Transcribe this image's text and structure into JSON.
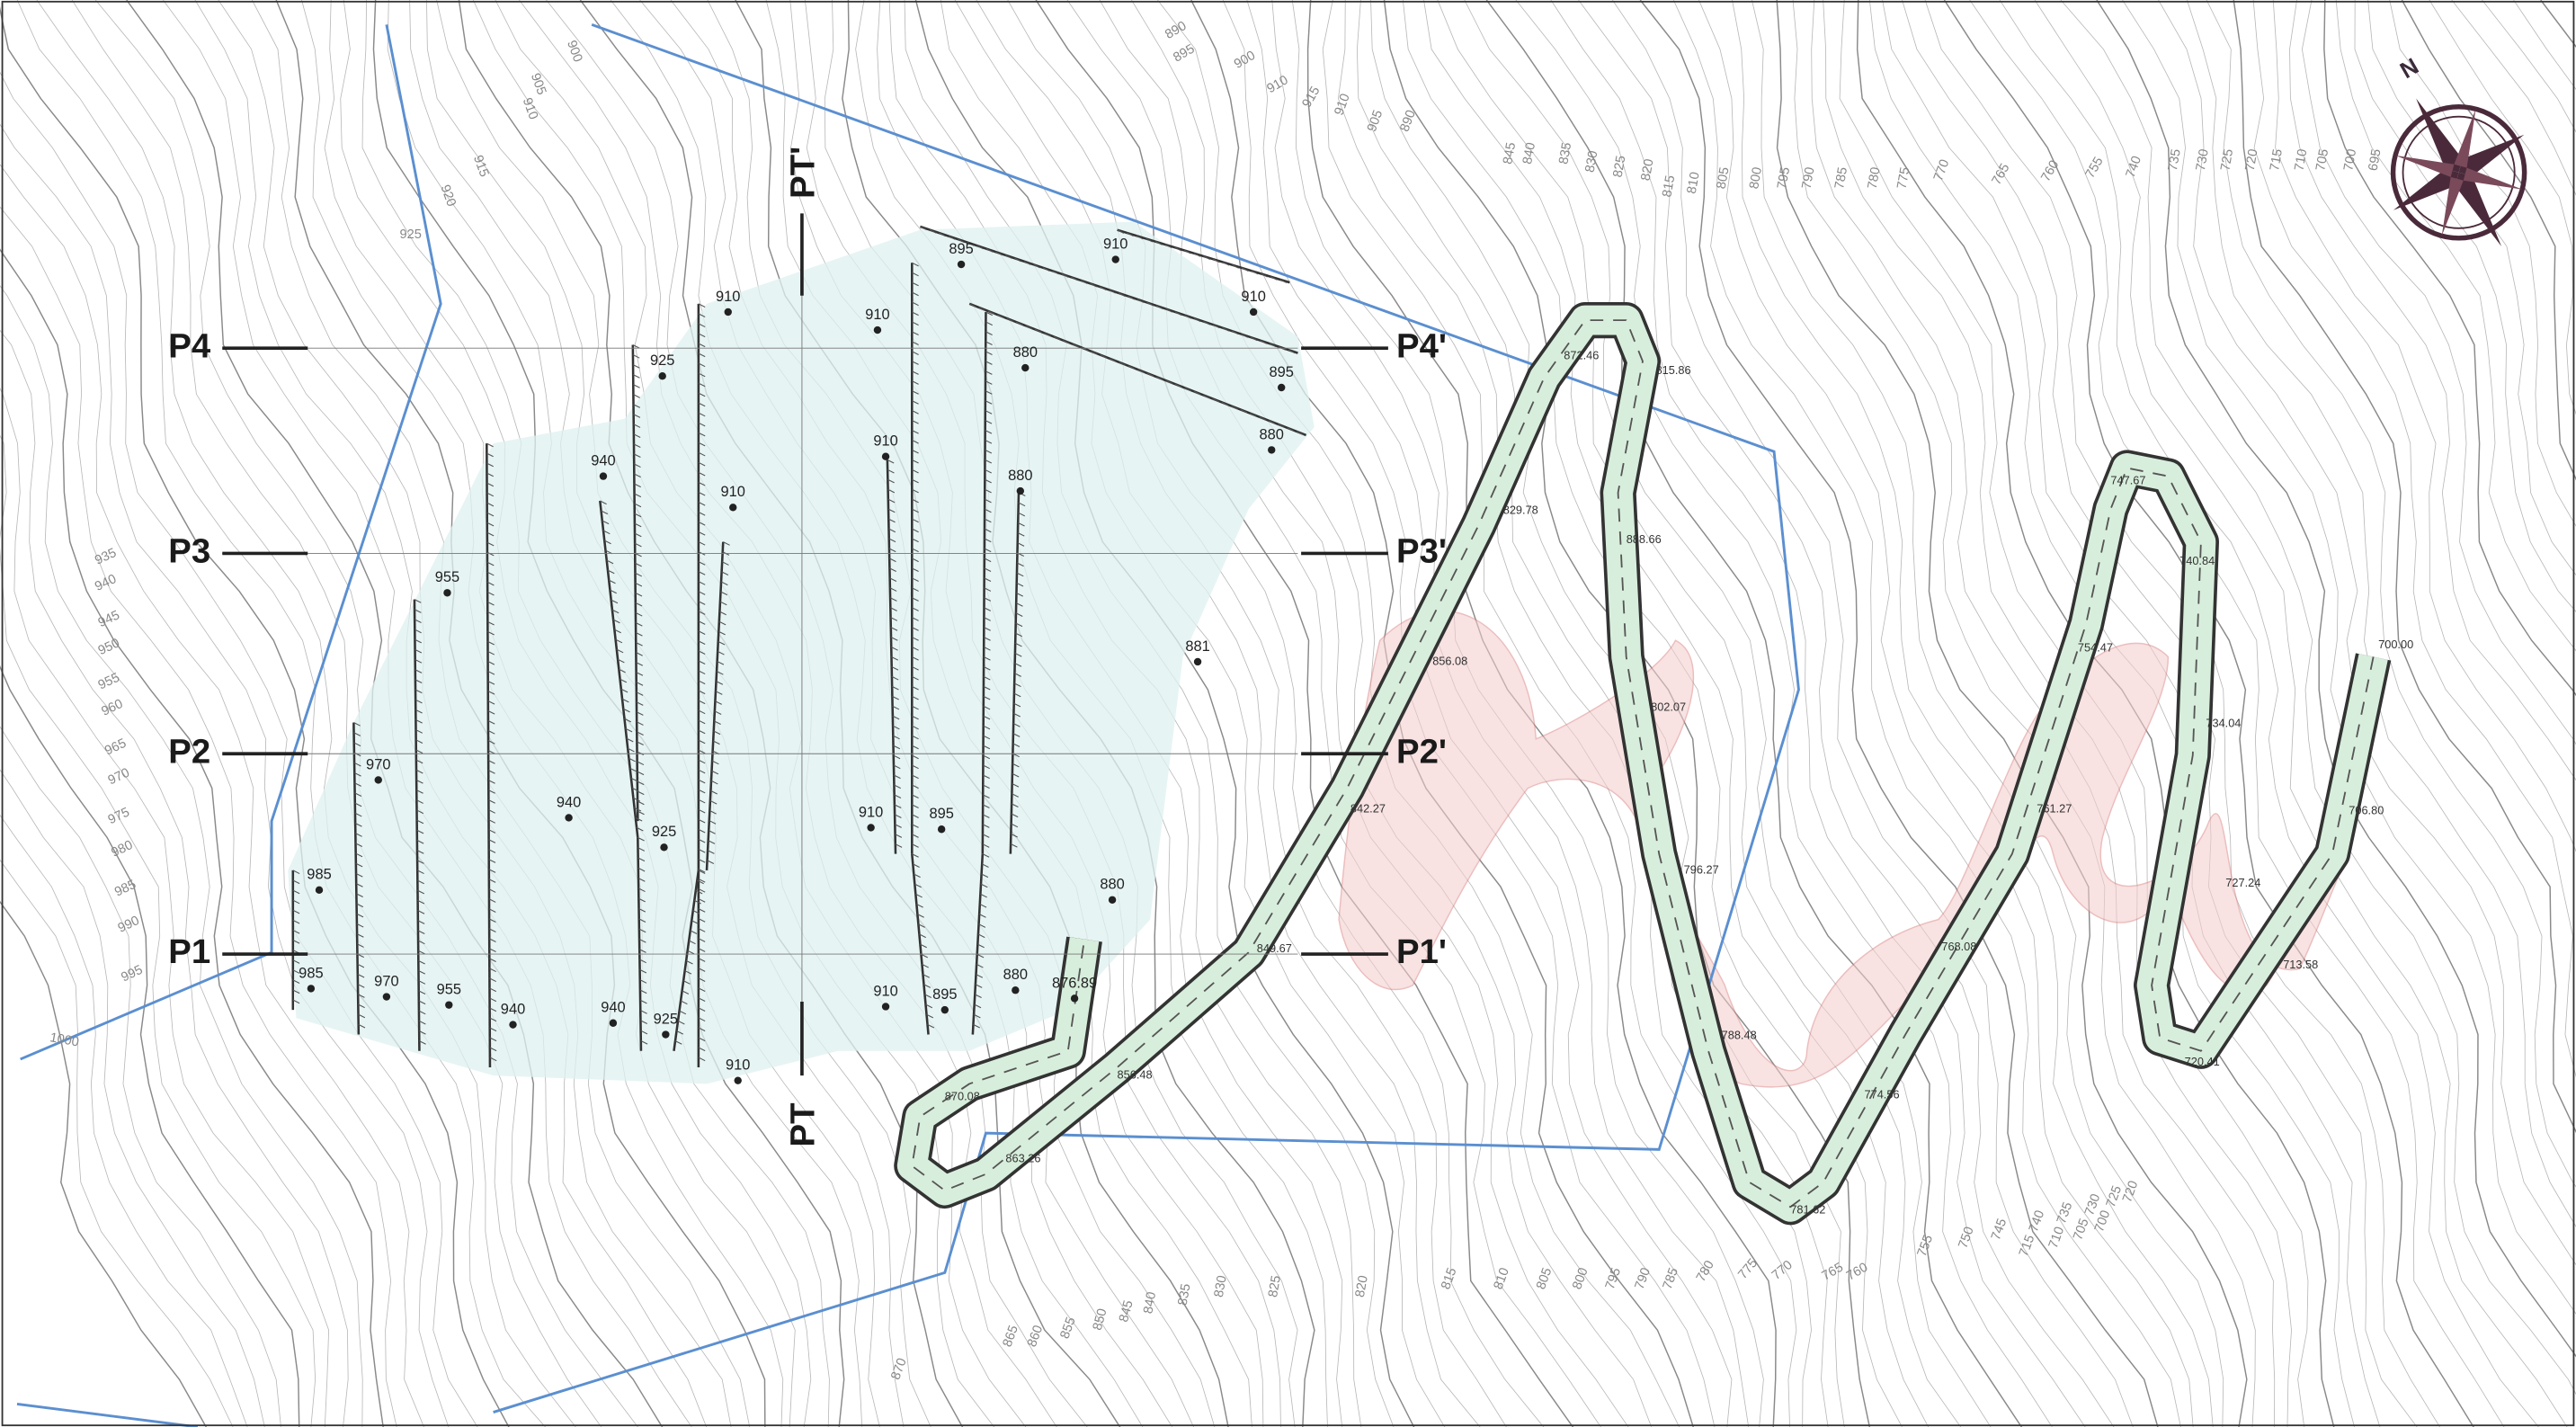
{
  "sections": [
    {
      "left": "P1",
      "right": "P1'"
    },
    {
      "left": "P2",
      "right": "P2'"
    },
    {
      "left": "P3",
      "right": "P3'"
    },
    {
      "left": "P4",
      "right": "P4'"
    }
  ],
  "profile": {
    "start": "PT",
    "end": "PT'"
  },
  "north": "N",
  "bench_labels": [
    "910",
    "910",
    "895",
    "910",
    "910",
    "880",
    "895",
    "880",
    "925",
    "940",
    "910",
    "910",
    "880",
    "955",
    "970",
    "940",
    "925",
    "910",
    "895",
    "985",
    "880",
    "985",
    "970",
    "955",
    "940",
    "940",
    "925",
    "910",
    "895",
    "880",
    "876.89",
    "910",
    "881"
  ],
  "road_labels": [
    "872.46",
    "815.86",
    "829.78",
    "888.66",
    "856.08",
    "802.07",
    "842.27",
    "796.27",
    "849.67",
    "856.48",
    "870.08",
    "863.26",
    "788.48",
    "781.62",
    "768.08",
    "774.56",
    "747.67",
    "740.84",
    "754.47",
    "734.04",
    "761.27",
    "727.24",
    "720.41",
    "713.58",
    "706.80",
    "700.00"
  ],
  "contour_labels": [
    "900",
    "905",
    "910",
    "915",
    "920",
    "925",
    "935",
    "940",
    "945",
    "950",
    "955",
    "960",
    "965",
    "970",
    "975",
    "980",
    "985",
    "990",
    "995",
    "1000",
    "890",
    "895",
    "900",
    "910",
    "915",
    "910",
    "905",
    "890",
    "845",
    "840",
    "835",
    "830",
    "825",
    "820",
    "815",
    "810",
    "805",
    "800",
    "795",
    "790",
    "785",
    "780",
    "775",
    "770",
    "765",
    "760",
    "755",
    "740",
    "735",
    "730",
    "725",
    "720",
    "715",
    "710",
    "705",
    "700",
    "695",
    "870",
    "865",
    "860",
    "855",
    "850",
    "845",
    "840",
    "835",
    "830",
    "825",
    "820",
    "815",
    "810",
    "805",
    "800",
    "795",
    "790",
    "785",
    "780",
    "775",
    "770",
    "765",
    "760",
    "755",
    "750",
    "745",
    "740",
    "735",
    "730",
    "725",
    "720",
    "715",
    "710",
    "705",
    "700"
  ]
}
